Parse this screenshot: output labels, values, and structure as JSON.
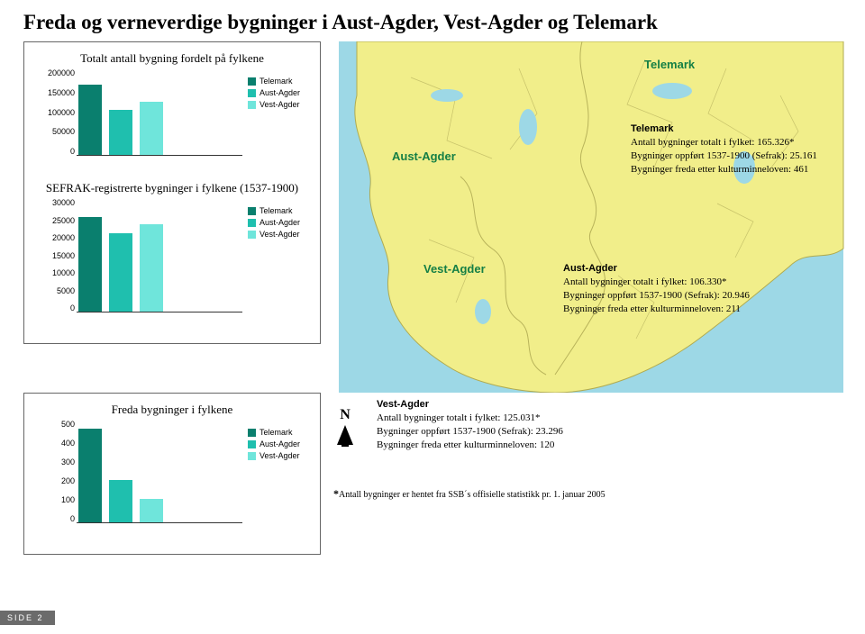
{
  "page_title": "Freda og verneverdige bygninger i Aust-Agder, Vest-Agder og Telemark",
  "colors": {
    "telemark": "#0a7f6e",
    "aust_agder": "#1fbfae",
    "vest_agder": "#6fe5db",
    "map_land": "#f1ee8a",
    "map_sea": "#9dd8e6",
    "map_border": "#6fb4c5"
  },
  "chart1": {
    "title": "Totalt antall bygning fordelt på fylkene",
    "ymax": 200000,
    "yticks": [
      "200000",
      "150000",
      "100000",
      "50000",
      "0"
    ],
    "bars": [
      {
        "label": "Telemark",
        "value": 165326
      },
      {
        "label": "Aust-Agder",
        "value": 106330
      },
      {
        "label": "Vest-Agder",
        "value": 125031
      }
    ]
  },
  "chart2": {
    "title": "SEFRAK-registrerte bygninger i fylkene (1537-1900)",
    "ymax": 30000,
    "yticks": [
      "30000",
      "25000",
      "20000",
      "15000",
      "10000",
      "5000",
      "0"
    ],
    "bars": [
      {
        "label": "Telemark",
        "value": 25161
      },
      {
        "label": "Aust-Agder",
        "value": 20946
      },
      {
        "label": "Vest-Agder",
        "value": 23296
      }
    ]
  },
  "chart3": {
    "title": "Freda bygninger i fylkene",
    "ymax": 500,
    "yticks": [
      "500",
      "400",
      "300",
      "200",
      "100",
      "0"
    ],
    "bars": [
      {
        "label": "Telemark",
        "value": 461
      },
      {
        "label": "Aust-Agder",
        "value": 211
      },
      {
        "label": "Vest-Agder",
        "value": 120
      }
    ]
  },
  "legend": {
    "items": [
      {
        "label": "Telemark",
        "color_key": "telemark"
      },
      {
        "label": "Aust-Agder",
        "color_key": "aust_agder"
      },
      {
        "label": "Vest-Agder",
        "color_key": "vest_agder"
      }
    ]
  },
  "map": {
    "labels": {
      "telemark": "Telemark",
      "aust_agder": "Aust-Agder",
      "vest_agder": "Vest-Agder"
    }
  },
  "info": {
    "telemark": {
      "heading": "Telemark",
      "line1": "Antall bygninger totalt i fylket: 165.326*",
      "line2": "Bygninger oppført 1537-1900 (Sefrak): 25.161",
      "line3": "Bygninger freda etter kulturminneloven: 461"
    },
    "aust_agder": {
      "heading": "Aust-Agder",
      "line1": "Antall bygninger totalt i fylket: 106.330*",
      "line2": "Bygninger oppført 1537-1900 (Sefrak): 20.946",
      "line3": "Bygninger freda etter kulturminneloven: 211"
    },
    "vest_agder": {
      "heading": "Vest-Agder",
      "line1": "Antall bygninger totalt i fylket: 125.031*",
      "line2": "Bygninger oppført 1537-1900 (Sefrak): 23.296",
      "line3": "Bygninger freda etter kulturminneloven: 120"
    }
  },
  "compass_label": "N",
  "footnote": "Antall bygninger er hentet fra SSB´s offisielle statistikk pr. 1. januar 2005",
  "side_tab": "SIDE 2"
}
